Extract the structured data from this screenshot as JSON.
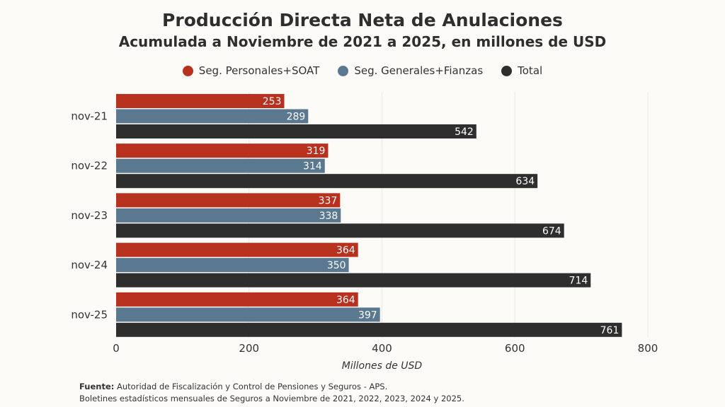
{
  "chart_data": {
    "type": "bar",
    "orientation": "horizontal",
    "title": "Producción Directa Neta de Anulaciones",
    "subtitle": "Acumulada a Noviembre de 2021 a 2025, en millones de USD",
    "categories": [
      "nov-21",
      "nov-22",
      "nov-23",
      "nov-24",
      "nov-25"
    ],
    "series": [
      {
        "name": "Seg. Personales+SOAT",
        "color": "#b8301e",
        "values": [
          253,
          319,
          337,
          364,
          364
        ]
      },
      {
        "name": "Seg. Generales+Fianzas",
        "color": "#5b7891",
        "values": [
          289,
          314,
          338,
          350,
          397
        ]
      },
      {
        "name": "Total",
        "color": "#2e2e2e",
        "values": [
          542,
          634,
          674,
          714,
          761
        ]
      }
    ],
    "xlabel": "Millones de USD",
    "xlim": [
      0,
      800
    ],
    "xticks": [
      "0",
      "200",
      "400",
      "600",
      "800"
    ],
    "grid": true,
    "legend_position": "top-center"
  },
  "source": {
    "label": "Fuente:",
    "line1": "Autoridad de Fiscalización y Control de Pensiones y Seguros - APS.",
    "line2": "Boletines estadísticos mensuales de Seguros a Noviembre de 2021, 2022, 2023, 2024 y 2025."
  }
}
